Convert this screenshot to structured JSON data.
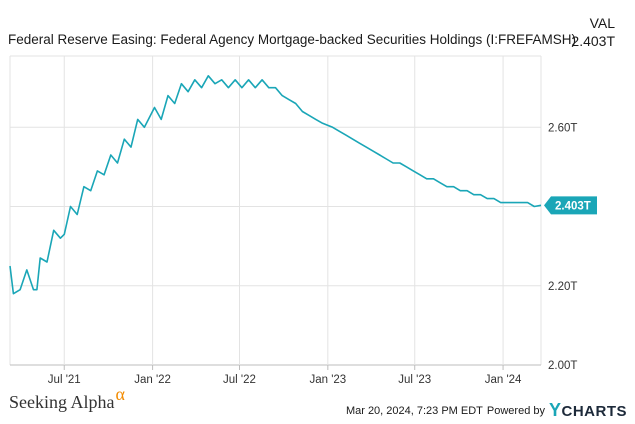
{
  "header": {
    "title": "Federal Reserve Easing: Federal Agency Mortgage-backed Securities Holdings (I:FREFAMSH)",
    "val_label": "VAL",
    "val_value": "2.403T"
  },
  "footer": {
    "brand": "Seeking Alpha",
    "brand_symbol": "α",
    "timestamp": "Mar 20, 2024, 7:23 PM EDT",
    "powered_by": "Powered by",
    "ycharts_y": "Y",
    "ycharts_rest": "CHARTS"
  },
  "colors": {
    "line": "#1aa6b7",
    "grid": "#e3e3e3",
    "axis": "#999999"
  },
  "chart_data": {
    "type": "line",
    "title": "Federal Reserve Easing: Federal Agency Mortgage-backed Securities Holdings (I:FREFAMSH)",
    "ylim": [
      2.0,
      2.78
    ],
    "y_ticks": [
      {
        "value": 2.0,
        "label": "2.00T"
      },
      {
        "value": 2.2,
        "label": "2.20T"
      },
      {
        "value": 2.4,
        "label": "2.40T"
      },
      {
        "value": 2.6,
        "label": "2.60T"
      }
    ],
    "x_ticks": [
      {
        "date": "2021-07-01",
        "label": "Jul '21"
      },
      {
        "date": "2022-01-01",
        "label": "Jan '22"
      },
      {
        "date": "2022-07-01",
        "label": "Jul '22"
      },
      {
        "date": "2023-01-01",
        "label": "Jan '23"
      },
      {
        "date": "2023-07-01",
        "label": "Jul '23"
      },
      {
        "date": "2024-01-01",
        "label": "Jan '24"
      }
    ],
    "xlim": [
      "2021-03-10",
      "2024-03-20"
    ],
    "last_value_label": "2.403T",
    "series": [
      {
        "points": [
          [
            "2021-03-10",
            2.25
          ],
          [
            "2021-03-17",
            2.18
          ],
          [
            "2021-03-31",
            2.19
          ],
          [
            "2021-04-14",
            2.24
          ],
          [
            "2021-04-28",
            2.19
          ],
          [
            "2021-05-05",
            2.19
          ],
          [
            "2021-05-12",
            2.27
          ],
          [
            "2021-05-26",
            2.26
          ],
          [
            "2021-06-09",
            2.34
          ],
          [
            "2021-06-23",
            2.32
          ],
          [
            "2021-07-01",
            2.33
          ],
          [
            "2021-07-14",
            2.4
          ],
          [
            "2021-07-28",
            2.38
          ],
          [
            "2021-08-11",
            2.45
          ],
          [
            "2021-08-25",
            2.44
          ],
          [
            "2021-09-08",
            2.49
          ],
          [
            "2021-09-22",
            2.48
          ],
          [
            "2021-10-06",
            2.53
          ],
          [
            "2021-10-20",
            2.51
          ],
          [
            "2021-11-03",
            2.57
          ],
          [
            "2021-11-17",
            2.55
          ],
          [
            "2021-12-01",
            2.62
          ],
          [
            "2021-12-15",
            2.6
          ],
          [
            "2022-01-05",
            2.65
          ],
          [
            "2022-01-19",
            2.62
          ],
          [
            "2022-02-02",
            2.68
          ],
          [
            "2022-02-16",
            2.66
          ],
          [
            "2022-03-02",
            2.71
          ],
          [
            "2022-03-16",
            2.69
          ],
          [
            "2022-03-30",
            2.72
          ],
          [
            "2022-04-13",
            2.7
          ],
          [
            "2022-04-27",
            2.73
          ],
          [
            "2022-05-11",
            2.71
          ],
          [
            "2022-05-25",
            2.72
          ],
          [
            "2022-06-08",
            2.7
          ],
          [
            "2022-06-22",
            2.72
          ],
          [
            "2022-07-06",
            2.7
          ],
          [
            "2022-07-20",
            2.72
          ],
          [
            "2022-08-03",
            2.7
          ],
          [
            "2022-08-17",
            2.72
          ],
          [
            "2022-08-31",
            2.7
          ],
          [
            "2022-09-14",
            2.7
          ],
          [
            "2022-09-28",
            2.68
          ],
          [
            "2022-10-12",
            2.67
          ],
          [
            "2022-10-26",
            2.66
          ],
          [
            "2022-11-09",
            2.64
          ],
          [
            "2022-11-23",
            2.63
          ],
          [
            "2022-12-07",
            2.62
          ],
          [
            "2022-12-21",
            2.61
          ],
          [
            "2023-01-11",
            2.6
          ],
          [
            "2023-01-25",
            2.59
          ],
          [
            "2023-02-08",
            2.58
          ],
          [
            "2023-02-22",
            2.57
          ],
          [
            "2023-03-08",
            2.56
          ],
          [
            "2023-03-22",
            2.55
          ],
          [
            "2023-04-05",
            2.54
          ],
          [
            "2023-04-19",
            2.53
          ],
          [
            "2023-05-03",
            2.52
          ],
          [
            "2023-05-17",
            2.51
          ],
          [
            "2023-05-31",
            2.51
          ],
          [
            "2023-06-14",
            2.5
          ],
          [
            "2023-06-28",
            2.49
          ],
          [
            "2023-07-12",
            2.48
          ],
          [
            "2023-07-26",
            2.47
          ],
          [
            "2023-08-09",
            2.47
          ],
          [
            "2023-08-23",
            2.46
          ],
          [
            "2023-09-06",
            2.45
          ],
          [
            "2023-09-20",
            2.45
          ],
          [
            "2023-10-04",
            2.44
          ],
          [
            "2023-10-18",
            2.44
          ],
          [
            "2023-11-01",
            2.43
          ],
          [
            "2023-11-15",
            2.43
          ],
          [
            "2023-11-29",
            2.42
          ],
          [
            "2023-12-13",
            2.42
          ],
          [
            "2023-12-27",
            2.41
          ],
          [
            "2024-01-10",
            2.41
          ],
          [
            "2024-01-24",
            2.41
          ],
          [
            "2024-02-07",
            2.41
          ],
          [
            "2024-02-21",
            2.41
          ],
          [
            "2024-03-06",
            2.4
          ],
          [
            "2024-03-20",
            2.403
          ]
        ]
      }
    ]
  }
}
